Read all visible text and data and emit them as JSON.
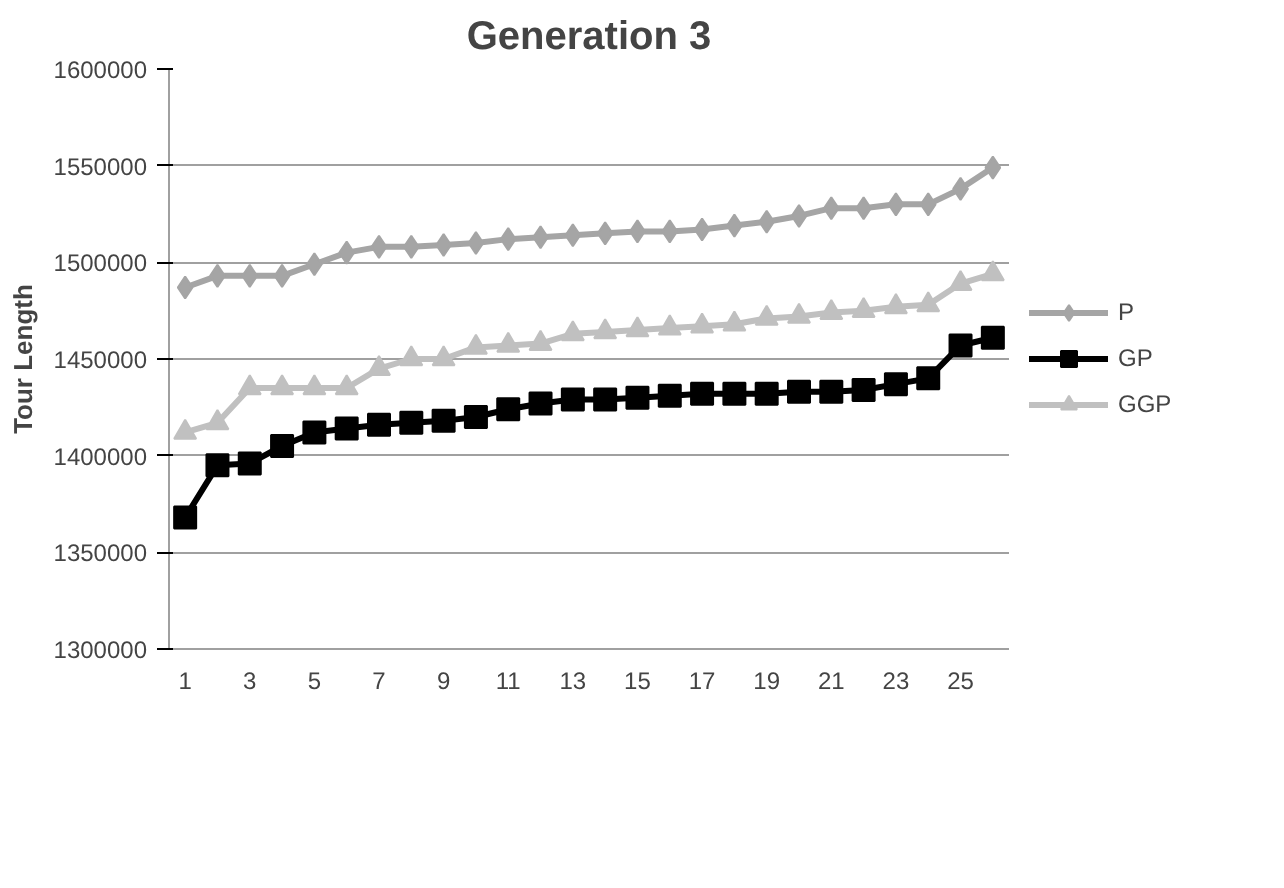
{
  "chart_data": {
    "type": "line",
    "title": "Generation 3",
    "ylabel": "Tour Length",
    "x": [
      1,
      2,
      3,
      4,
      5,
      6,
      7,
      8,
      9,
      10,
      11,
      12,
      13,
      14,
      15,
      16,
      17,
      18,
      19,
      20,
      21,
      22,
      23,
      24,
      25,
      26
    ],
    "xlim": [
      0.5,
      26.5
    ],
    "xticks": [
      1,
      3,
      5,
      7,
      9,
      11,
      13,
      15,
      17,
      19,
      21,
      23,
      25
    ],
    "ylim": [
      1300000,
      1600000
    ],
    "yticks": [
      1300000,
      1350000,
      1400000,
      1450000,
      1500000,
      1550000,
      1600000
    ],
    "grid": "y",
    "legend": "right",
    "series": [
      {
        "name": "P",
        "color": "#a5a5a5",
        "marker": "diamond",
        "values": [
          1487000,
          1493000,
          1493000,
          1493000,
          1499000,
          1505000,
          1508000,
          1508000,
          1509000,
          1510000,
          1512000,
          1513000,
          1514000,
          1515000,
          1516000,
          1516000,
          1517000,
          1519000,
          1521000,
          1524000,
          1528000,
          1528000,
          1530000,
          1530000,
          1538000,
          1549000
        ]
      },
      {
        "name": "GP",
        "color": "#000000",
        "marker": "square",
        "values": [
          1368000,
          1395000,
          1396000,
          1405000,
          1412000,
          1414000,
          1416000,
          1417000,
          1418000,
          1420000,
          1424000,
          1427000,
          1429000,
          1429000,
          1430000,
          1431000,
          1432000,
          1432000,
          1432000,
          1433000,
          1433000,
          1434000,
          1437000,
          1440000,
          1457000,
          1461000
        ]
      },
      {
        "name": "GGP",
        "color": "#c0c0c0",
        "marker": "triangle",
        "values": [
          1412000,
          1417000,
          1435000,
          1435000,
          1435000,
          1435000,
          1445000,
          1450000,
          1450000,
          1456000,
          1457000,
          1458000,
          1463000,
          1464000,
          1465000,
          1466000,
          1467000,
          1468000,
          1471000,
          1472000,
          1474000,
          1475000,
          1477000,
          1478000,
          1489000,
          1494000
        ]
      }
    ]
  }
}
